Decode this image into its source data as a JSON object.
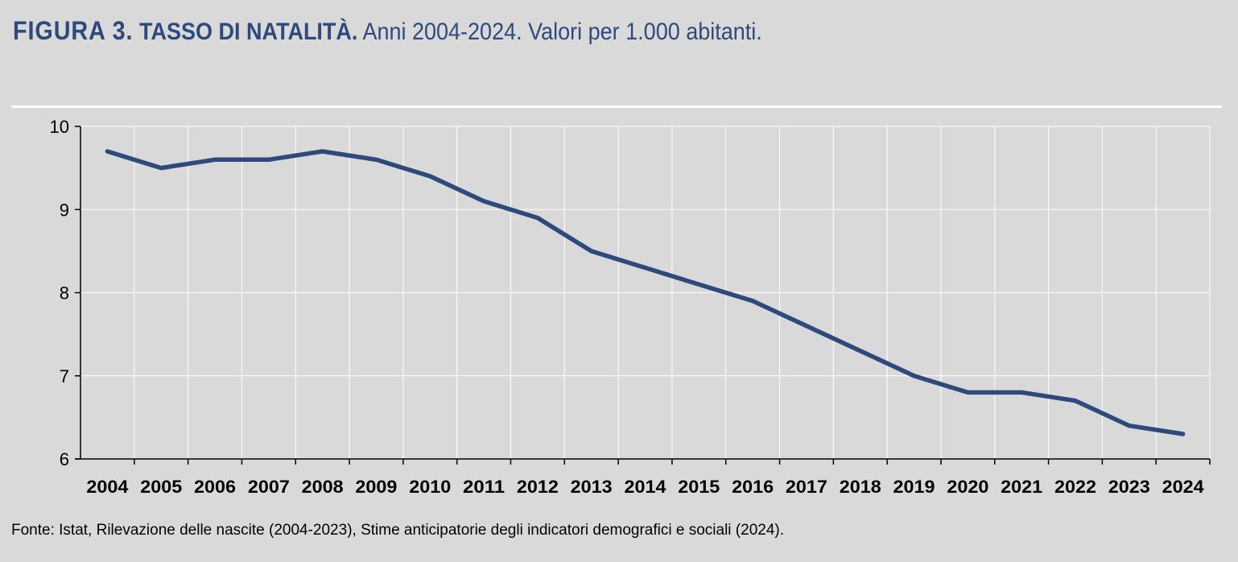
{
  "header": {
    "figure_label": "FIGURA 3.",
    "topic": "TASSO DI NATALITÀ.",
    "description": "Anni 2004-2024. Valori per 1.000 abitanti."
  },
  "footer": {
    "source": "Fonte: Istat, Rilevazione delle nascite (2004-2023), Stime anticipatorie degli indicatori demografici e sociali (2024)."
  },
  "colors": {
    "line": "#2e4a7d",
    "background": "#d9d9d9",
    "grid": "#ffffff"
  },
  "chart_data": {
    "type": "line",
    "title": "TASSO DI NATALITÀ.",
    "xlabel": "",
    "ylabel": "",
    "ylim": [
      6,
      10
    ],
    "yticks": [
      6,
      7,
      8,
      9,
      10
    ],
    "grid": true,
    "legend": "none",
    "categories": [
      "2004",
      "2005",
      "2006",
      "2007",
      "2008",
      "2009",
      "2010",
      "2011",
      "2012",
      "2013",
      "2014",
      "2015",
      "2016",
      "2017",
      "2018",
      "2019",
      "2020",
      "2021",
      "2022",
      "2023",
      "2024"
    ],
    "series": [
      {
        "values": [
          9.7,
          9.5,
          9.6,
          9.6,
          9.7,
          9.6,
          9.4,
          9.1,
          8.9,
          8.5,
          8.3,
          8.1,
          7.9,
          7.6,
          7.3,
          7.0,
          6.8,
          6.8,
          6.7,
          6.4,
          6.3
        ]
      }
    ]
  }
}
